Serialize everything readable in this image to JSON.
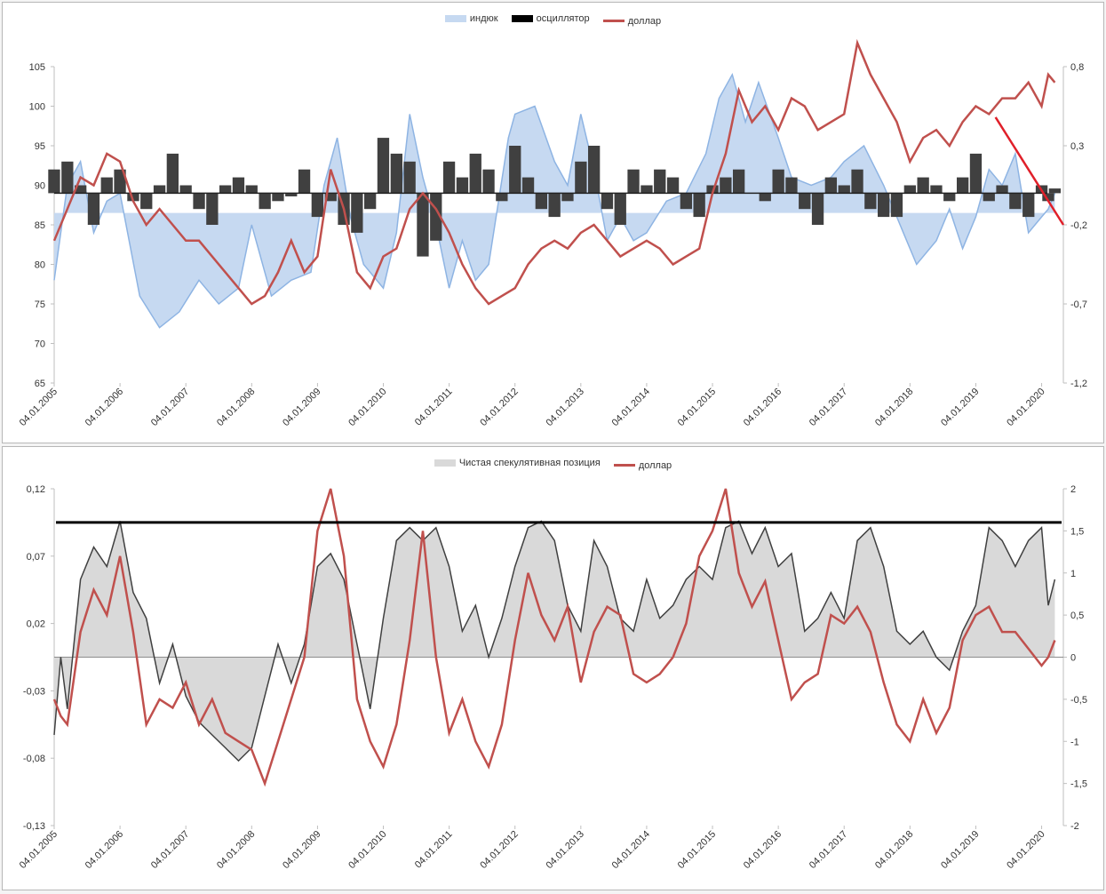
{
  "chart_data": [
    {
      "type": "area",
      "title": "",
      "legend": [
        "индюк",
        "осциллятор",
        "доллар"
      ],
      "legend_position": "top",
      "x_tick_labels": [
        "04.01.2005",
        "04.01.2006",
        "04.01.2007",
        "04.01.2008",
        "04.01.2009",
        "04.01.2010",
        "04.01.2011",
        "04.01.2012",
        "04.01.2013",
        "04.01.2014",
        "04.01.2015",
        "04.01.2016",
        "04.01.2017",
        "04.01.2018",
        "04.01.2019",
        "04.01.2020"
      ],
      "y_left": {
        "ticks": [
          "65",
          "70",
          "75",
          "80",
          "85",
          "90",
          "95",
          "100",
          "105"
        ],
        "range": [
          65,
          105
        ]
      },
      "y_right": {
        "ticks": [
          "-1,2",
          "-0,7",
          "-0,2",
          "0,3",
          "0,8"
        ],
        "range": [
          -1.2,
          0.8
        ]
      },
      "colors": {
        "index_fill": "#c6d9f1",
        "index_line": "#8eb4e3",
        "oscillator": "#404040",
        "dollar": "#c0504d",
        "trend": "#e0202a"
      },
      "series": [
        {
          "name": "индюк",
          "axis": "left",
          "style": "area",
          "x": [
            2005.0,
            2005.2,
            2005.4,
            2005.6,
            2005.8,
            2006.0,
            2006.3,
            2006.6,
            2006.9,
            2007.2,
            2007.5,
            2007.8,
            2008.0,
            2008.3,
            2008.6,
            2008.9,
            2009.1,
            2009.3,
            2009.5,
            2009.7,
            2010.0,
            2010.2,
            2010.4,
            2010.6,
            2010.8,
            2011.0,
            2011.2,
            2011.4,
            2011.6,
            2011.9,
            2012.0,
            2012.3,
            2012.6,
            2012.8,
            2013.0,
            2013.2,
            2013.4,
            2013.6,
            2013.8,
            2014.0,
            2014.3,
            2014.6,
            2014.9,
            2015.1,
            2015.3,
            2015.5,
            2015.7,
            2016.0,
            2016.2,
            2016.5,
            2016.8,
            2017.0,
            2017.3,
            2017.6,
            2017.9,
            2018.1,
            2018.4,
            2018.6,
            2018.8,
            2019.0,
            2019.2,
            2019.4,
            2019.6,
            2019.8,
            2020.0,
            2020.1,
            2020.2
          ],
          "values": [
            78,
            90,
            93,
            84,
            88,
            89,
            76,
            72,
            74,
            78,
            75,
            77,
            85,
            76,
            78,
            79,
            90,
            96,
            86,
            80,
            77,
            84,
            99,
            91,
            85,
            77,
            83,
            78,
            80,
            96,
            99,
            100,
            93,
            90,
            99,
            92,
            83,
            86,
            83,
            84,
            88,
            89,
            94,
            101,
            104,
            98,
            103,
            96,
            91,
            90,
            91,
            93,
            95,
            90,
            84,
            80,
            83,
            87,
            82,
            86,
            92,
            90,
            94,
            84,
            86,
            87,
            89
          ]
        },
        {
          "name": "осциллятор",
          "axis": "right",
          "style": "columns",
          "x": [
            2005.0,
            2005.2,
            2005.4,
            2005.6,
            2005.8,
            2006.0,
            2006.2,
            2006.4,
            2006.6,
            2006.8,
            2007.0,
            2007.2,
            2007.4,
            2007.6,
            2007.8,
            2008.0,
            2008.2,
            2008.4,
            2008.6,
            2008.8,
            2009.0,
            2009.2,
            2009.4,
            2009.6,
            2009.8,
            2010.0,
            2010.2,
            2010.4,
            2010.6,
            2010.8,
            2011.0,
            2011.2,
            2011.4,
            2011.6,
            2011.8,
            2012.0,
            2012.2,
            2012.4,
            2012.6,
            2012.8,
            2013.0,
            2013.2,
            2013.4,
            2013.6,
            2013.8,
            2014.0,
            2014.2,
            2014.4,
            2014.6,
            2014.8,
            2015.0,
            2015.2,
            2015.4,
            2015.6,
            2015.8,
            2016.0,
            2016.2,
            2016.4,
            2016.6,
            2016.8,
            2017.0,
            2017.2,
            2017.4,
            2017.6,
            2017.8,
            2018.0,
            2018.2,
            2018.4,
            2018.6,
            2018.8,
            2019.0,
            2019.2,
            2019.4,
            2019.6,
            2019.8,
            2020.0,
            2020.1,
            2020.2
          ],
          "values": [
            0.15,
            0.2,
            0.05,
            -0.2,
            0.1,
            0.15,
            -0.05,
            -0.1,
            0.05,
            0.25,
            0.05,
            -0.1,
            -0.2,
            0.05,
            0.1,
            0.05,
            -0.1,
            -0.05,
            -0.02,
            0.15,
            -0.15,
            -0.05,
            -0.2,
            -0.25,
            -0.1,
            0.35,
            0.25,
            0.2,
            -0.4,
            -0.3,
            0.2,
            0.1,
            0.25,
            0.15,
            -0.05,
            0.3,
            0.1,
            -0.1,
            -0.15,
            -0.05,
            0.2,
            0.3,
            -0.1,
            -0.2,
            0.15,
            0.05,
            0.15,
            0.1,
            -0.1,
            -0.15,
            0.05,
            0.1,
            0.15,
            0.0,
            -0.05,
            0.15,
            0.1,
            -0.1,
            -0.2,
            0.1,
            0.05,
            0.15,
            -0.1,
            -0.15,
            -0.15,
            0.05,
            0.1,
            0.05,
            -0.05,
            0.1,
            0.25,
            -0.05,
            0.05,
            -0.1,
            -0.15,
            0.05,
            -0.05,
            0.03
          ]
        },
        {
          "name": "доллар",
          "axis": "right",
          "style": "line",
          "x": [
            2005.0,
            2005.2,
            2005.4,
            2005.6,
            2005.8,
            2006.0,
            2006.2,
            2006.4,
            2006.6,
            2006.8,
            2007.0,
            2007.2,
            2007.4,
            2007.6,
            2007.8,
            2008.0,
            2008.2,
            2008.4,
            2008.6,
            2008.8,
            2009.0,
            2009.2,
            2009.4,
            2009.6,
            2009.8,
            2010.0,
            2010.2,
            2010.4,
            2010.6,
            2010.8,
            2011.0,
            2011.2,
            2011.4,
            2011.6,
            2011.8,
            2012.0,
            2012.2,
            2012.4,
            2012.6,
            2012.8,
            2013.0,
            2013.2,
            2013.4,
            2013.6,
            2013.8,
            2014.0,
            2014.2,
            2014.4,
            2014.6,
            2014.8,
            2015.0,
            2015.2,
            2015.4,
            2015.6,
            2015.8,
            2016.0,
            2016.2,
            2016.4,
            2016.6,
            2016.8,
            2017.0,
            2017.2,
            2017.4,
            2017.6,
            2017.8,
            2018.0,
            2018.2,
            2018.4,
            2018.6,
            2018.8,
            2019.0,
            2019.2,
            2019.4,
            2019.6,
            2019.8,
            2020.0,
            2020.1,
            2020.2
          ],
          "values": [
            -0.3,
            -0.1,
            0.1,
            0.05,
            0.25,
            0.2,
            -0.05,
            -0.2,
            -0.1,
            -0.2,
            -0.3,
            -0.3,
            -0.4,
            -0.5,
            -0.6,
            -0.7,
            -0.65,
            -0.5,
            -0.3,
            -0.5,
            -0.4,
            0.15,
            -0.1,
            -0.5,
            -0.6,
            -0.4,
            -0.35,
            -0.1,
            0.0,
            -0.1,
            -0.25,
            -0.45,
            -0.6,
            -0.7,
            -0.65,
            -0.6,
            -0.45,
            -0.35,
            -0.3,
            -0.35,
            -0.25,
            -0.2,
            -0.3,
            -0.4,
            -0.35,
            -0.3,
            -0.35,
            -0.45,
            -0.4,
            -0.35,
            0.0,
            0.25,
            0.65,
            0.45,
            0.55,
            0.4,
            0.6,
            0.55,
            0.4,
            0.45,
            0.5,
            0.95,
            0.75,
            0.6,
            0.45,
            0.2,
            0.35,
            0.4,
            0.3,
            0.45,
            0.55,
            0.5,
            0.6,
            0.6,
            0.7,
            0.55,
            0.75,
            0.7
          ]
        }
      ],
      "annotations": [
        {
          "type": "trend-line",
          "from": [
            2019.3,
            0.48
          ],
          "to": [
            2020.33,
            -0.2
          ]
        }
      ]
    },
    {
      "type": "area",
      "title": "",
      "legend": [
        "Чистая спекулятивная позиция",
        "доллар"
      ],
      "legend_position": "top",
      "x_tick_labels": [
        "04.01.2005",
        "04.01.2006",
        "04.01.2007",
        "04.01.2008",
        "04.01.2009",
        "04.01.2010",
        "04.01.2011",
        "04.01.2012",
        "04.01.2013",
        "04.01.2014",
        "04.01.2015",
        "04.01.2016",
        "04.01.2017",
        "04.01.2018",
        "04.01.2019",
        "04.01.2020"
      ],
      "y_left": {
        "ticks": [
          "-0,13",
          "-0,08",
          "-0,03",
          "0,02",
          "0,07",
          "0,12"
        ],
        "range": [
          -0.13,
          0.13
        ]
      },
      "y_right": {
        "ticks": [
          "-2",
          "-1,5",
          "-1",
          "-0,5",
          "0",
          "0,5",
          "1",
          "1,5",
          "2"
        ],
        "range": [
          -2,
          2
        ]
      },
      "colors": {
        "position_fill": "#d9d9d9",
        "position_line": "#404040",
        "dollar": "#c0504d",
        "level": "#000000"
      },
      "series": [
        {
          "name": "Чистая спекулятивная позиция",
          "axis": "left",
          "style": "area",
          "x": [
            2005.0,
            2005.1,
            2005.2,
            2005.4,
            2005.6,
            2005.8,
            2006.0,
            2006.2,
            2006.4,
            2006.6,
            2006.8,
            2007.0,
            2007.2,
            2007.4,
            2007.6,
            2007.8,
            2008.0,
            2008.2,
            2008.4,
            2008.6,
            2008.8,
            2009.0,
            2009.2,
            2009.4,
            2009.6,
            2009.8,
            2010.0,
            2010.2,
            2010.4,
            2010.6,
            2010.8,
            2011.0,
            2011.2,
            2011.4,
            2011.6,
            2011.8,
            2012.0,
            2012.2,
            2012.4,
            2012.6,
            2012.8,
            2013.0,
            2013.2,
            2013.4,
            2013.6,
            2013.8,
            2014.0,
            2014.2,
            2014.4,
            2014.6,
            2014.8,
            2015.0,
            2015.2,
            2015.4,
            2015.6,
            2015.8,
            2016.0,
            2016.2,
            2016.4,
            2016.6,
            2016.8,
            2017.0,
            2017.2,
            2017.4,
            2017.6,
            2017.8,
            2018.0,
            2018.2,
            2018.4,
            2018.6,
            2018.8,
            2019.0,
            2019.2,
            2019.4,
            2019.6,
            2019.8,
            2020.0,
            2020.1,
            2020.2
          ],
          "values": [
            -0.06,
            0.0,
            -0.04,
            0.06,
            0.085,
            0.07,
            0.105,
            0.05,
            0.03,
            -0.02,
            0.01,
            -0.03,
            -0.05,
            -0.06,
            -0.07,
            -0.08,
            -0.07,
            -0.03,
            0.01,
            -0.02,
            0.01,
            0.07,
            0.08,
            0.06,
            0.01,
            -0.04,
            0.03,
            0.09,
            0.1,
            0.09,
            0.1,
            0.07,
            0.02,
            0.04,
            0.0,
            0.03,
            0.07,
            0.1,
            0.105,
            0.09,
            0.04,
            0.02,
            0.09,
            0.07,
            0.03,
            0.02,
            0.06,
            0.03,
            0.04,
            0.06,
            0.07,
            0.06,
            0.1,
            0.105,
            0.08,
            0.1,
            0.07,
            0.08,
            0.02,
            0.03,
            0.05,
            0.03,
            0.09,
            0.1,
            0.07,
            0.02,
            0.01,
            0.02,
            0.0,
            -0.01,
            0.02,
            0.04,
            0.1,
            0.09,
            0.07,
            0.09,
            0.1,
            0.04,
            0.06
          ]
        },
        {
          "name": "доллар",
          "axis": "right",
          "style": "line",
          "x": [
            2005.0,
            2005.1,
            2005.2,
            2005.4,
            2005.6,
            2005.8,
            2006.0,
            2006.2,
            2006.4,
            2006.6,
            2006.8,
            2007.0,
            2007.2,
            2007.4,
            2007.6,
            2007.8,
            2008.0,
            2008.2,
            2008.4,
            2008.6,
            2008.8,
            2009.0,
            2009.2,
            2009.4,
            2009.6,
            2009.8,
            2010.0,
            2010.2,
            2010.4,
            2010.6,
            2010.8,
            2011.0,
            2011.2,
            2011.4,
            2011.6,
            2011.8,
            2012.0,
            2012.2,
            2012.4,
            2012.6,
            2012.8,
            2013.0,
            2013.2,
            2013.4,
            2013.6,
            2013.8,
            2014.0,
            2014.2,
            2014.4,
            2014.6,
            2014.8,
            2015.0,
            2015.2,
            2015.4,
            2015.6,
            2015.8,
            2016.0,
            2016.2,
            2016.4,
            2016.6,
            2016.8,
            2017.0,
            2017.2,
            2017.4,
            2017.6,
            2017.8,
            2018.0,
            2018.2,
            2018.4,
            2018.6,
            2018.8,
            2019.0,
            2019.2,
            2019.4,
            2019.6,
            2019.8,
            2020.0,
            2020.1,
            2020.2
          ],
          "values": [
            -0.5,
            -0.7,
            -0.8,
            0.3,
            0.8,
            0.5,
            1.2,
            0.3,
            -0.8,
            -0.5,
            -0.6,
            -0.3,
            -0.8,
            -0.5,
            -0.9,
            -1.0,
            -1.1,
            -1.5,
            -1.0,
            -0.5,
            0.0,
            1.5,
            2.0,
            1.2,
            -0.5,
            -1.0,
            -1.3,
            -0.8,
            0.2,
            1.5,
            0.0,
            -0.9,
            -0.5,
            -1.0,
            -1.3,
            -0.8,
            0.2,
            1.0,
            0.5,
            0.2,
            0.6,
            -0.3,
            0.3,
            0.6,
            0.5,
            -0.2,
            -0.3,
            -0.2,
            0.0,
            0.4,
            1.2,
            1.5,
            2.0,
            1.0,
            0.6,
            0.9,
            0.2,
            -0.5,
            -0.3,
            -0.2,
            0.5,
            0.4,
            0.6,
            0.3,
            -0.3,
            -0.8,
            -1.0,
            -0.5,
            -0.9,
            -0.6,
            0.2,
            0.5,
            0.6,
            0.3,
            0.3,
            0.1,
            -0.1,
            0.0,
            0.2
          ]
        }
      ],
      "reference_line": {
        "axis": "right",
        "value": 1.6
      }
    }
  ]
}
